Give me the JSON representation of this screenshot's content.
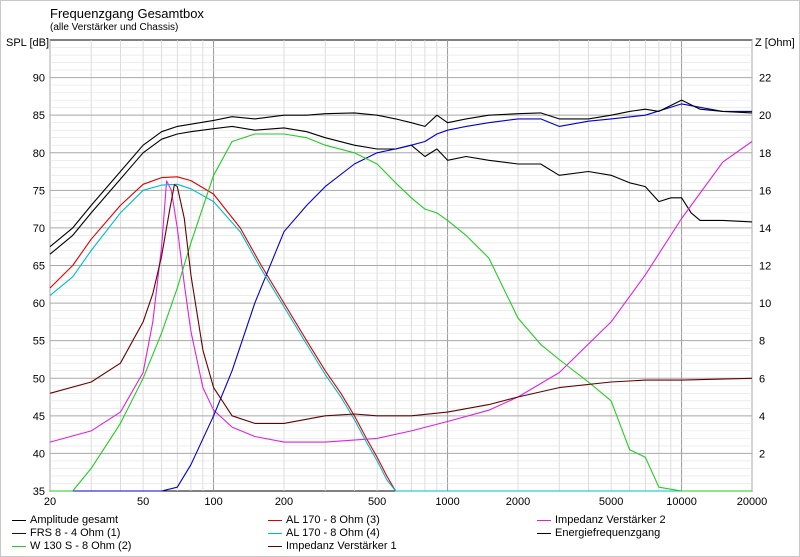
{
  "chart_data": {
    "type": "line",
    "title": "Frequenzgang Gesamtbox",
    "subtitle": "(alle Verstärker und Chassis)",
    "ylabel_left": "SPL [dB]",
    "ylabel_right": "Z [Ohm]",
    "x_scale": "log",
    "xlim": [
      20,
      20000
    ],
    "ylim": [
      35,
      95
    ],
    "ylim_right": [
      0,
      24
    ],
    "grid": true,
    "x_ticks": [
      20,
      50,
      100,
      200,
      500,
      1000,
      2000,
      5000,
      10000,
      20000
    ],
    "x_tick_labels": [
      "20",
      "50",
      "100",
      "200",
      "500",
      "1000",
      "2000",
      "5000",
      "10000",
      "20000"
    ],
    "y_ticks": [
      35,
      40,
      45,
      50,
      55,
      60,
      65,
      70,
      75,
      80,
      85,
      90
    ],
    "y_tick_labels": [
      "35",
      "40",
      "45",
      "50",
      "55",
      "60",
      "65",
      "70",
      "75",
      "80",
      "85",
      "90"
    ],
    "y_right_ticks": [
      2,
      4,
      6,
      8,
      10,
      12,
      14,
      16,
      18,
      20,
      22
    ],
    "y_right_tick_labels": [
      "2",
      "4",
      "6",
      "8",
      "10",
      "12",
      "14",
      "16",
      "18",
      "20",
      "22"
    ],
    "legend_placement": "bottom",
    "series": [
      {
        "name": "Amplitude gesamt",
        "color": "#000000",
        "axis": "left",
        "x": [
          20,
          25,
          30,
          40,
          50,
          60,
          70,
          80,
          100,
          120,
          150,
          200,
          250,
          300,
          400,
          500,
          600,
          700,
          800,
          900,
          1000,
          1200,
          1500,
          2000,
          2500,
          3000,
          4000,
          5000,
          6000,
          7000,
          8000,
          9000,
          10000,
          11000,
          12000,
          15000,
          20000
        ],
        "y": [
          66.5,
          69,
          72,
          76.5,
          80,
          81.8,
          82.5,
          82.8,
          83.2,
          83.5,
          83,
          83.3,
          82.8,
          82,
          81,
          80.5,
          80.5,
          81,
          79.5,
          80.5,
          79,
          79.5,
          79,
          78.5,
          78.5,
          77,
          77.5,
          77,
          76,
          75.5,
          73.5,
          74,
          74,
          72,
          71,
          71,
          70.8
        ]
      },
      {
        "name": "AL 170 - 8 Ohm (3)",
        "color": "#dd0000",
        "axis": "left",
        "x": [
          20,
          25,
          30,
          40,
          50,
          60,
          70,
          80,
          100,
          130,
          160,
          200,
          250,
          300,
          350,
          400,
          450,
          500,
          550,
          600,
          1000,
          2000,
          5000,
          10000,
          20000
        ],
        "y": [
          62,
          65,
          68.5,
          73,
          75.8,
          76.7,
          76.8,
          76.3,
          74.5,
          70,
          65,
          60,
          55,
          51,
          48,
          45,
          42,
          39.5,
          37,
          35,
          35,
          35,
          35,
          35,
          35
        ]
      },
      {
        "name": "Impedanz Verstärker 2",
        "color": "#dd22dd",
        "axis": "right",
        "x": [
          20,
          30,
          40,
          50,
          55,
          60,
          63,
          66,
          70,
          75,
          80,
          90,
          100,
          120,
          150,
          200,
          300,
          500,
          700,
          1000,
          1500,
          2000,
          3000,
          5000,
          7000,
          10000,
          15000,
          20000
        ],
        "y": [
          2.6,
          3.2,
          4.2,
          6.3,
          9,
          13,
          16.5,
          16,
          14,
          11,
          8.5,
          5.5,
          4.3,
          3.4,
          2.9,
          2.6,
          2.6,
          2.8,
          3.2,
          3.7,
          4.3,
          5,
          6.3,
          9,
          11.5,
          14.5,
          17.5,
          18.6
        ]
      },
      {
        "name": "FRS 8 - 4 Ohm (1)",
        "color": "#0000cc",
        "axis": "left",
        "x": [
          20,
          60,
          70,
          80,
          100,
          120,
          150,
          200,
          250,
          300,
          400,
          500,
          600,
          700,
          800,
          900,
          1000,
          1200,
          1500,
          2000,
          2500,
          3000,
          4000,
          5000,
          7000,
          10000,
          15000,
          20000
        ],
        "y": [
          35,
          35,
          35.5,
          38.5,
          45,
          51,
          60,
          69.5,
          73,
          75.5,
          78.5,
          80,
          80.5,
          81,
          81.5,
          82.5,
          83,
          83.5,
          84,
          84.5,
          84.5,
          83.5,
          84.2,
          84.5,
          85,
          86.5,
          85.5,
          85.5
        ]
      },
      {
        "name": "AL 170 - 8 Ohm (4)",
        "color": "#00bbcc",
        "axis": "left",
        "x": [
          20,
          25,
          30,
          40,
          50,
          60,
          70,
          80,
          100,
          130,
          160,
          200,
          250,
          300,
          350,
          400,
          450,
          500,
          550,
          600,
          1000,
          2000,
          5000,
          10000,
          20000
        ],
        "y": [
          61,
          63.5,
          67,
          72,
          75,
          75.7,
          75.8,
          75.2,
          73.5,
          69.5,
          64.5,
          59.5,
          54.5,
          50.5,
          47.5,
          44.5,
          41.5,
          39,
          36.5,
          35,
          35,
          35,
          35,
          35,
          35
        ]
      },
      {
        "name": "Energiefrequenzgang",
        "color": "#000000",
        "axis": "left",
        "x": [
          20,
          25,
          30,
          40,
          50,
          60,
          70,
          80,
          100,
          120,
          150,
          200,
          250,
          300,
          400,
          500,
          600,
          700,
          800,
          900,
          1000,
          1200,
          1500,
          2000,
          2500,
          3000,
          4000,
          5000,
          6000,
          7000,
          8000,
          10000,
          12000,
          15000,
          20000
        ],
        "y": [
          67.5,
          70,
          73,
          77.5,
          81,
          82.8,
          83.5,
          83.8,
          84.3,
          84.8,
          84.5,
          85,
          85,
          85.2,
          85.3,
          85,
          84.5,
          84,
          83.5,
          85,
          84,
          84.5,
          85,
          85.2,
          85.3,
          84.5,
          84.5,
          85,
          85.5,
          85.8,
          85.5,
          87,
          85.8,
          85.5,
          85.3
        ]
      },
      {
        "name": "W 130 S - 8 Ohm (2)",
        "color": "#22cc22",
        "axis": "left",
        "x": [
          20,
          25,
          30,
          40,
          50,
          60,
          70,
          80,
          100,
          120,
          150,
          200,
          250,
          300,
          400,
          500,
          600,
          700,
          800,
          900,
          1000,
          1200,
          1500,
          2000,
          2500,
          3000,
          4000,
          5000,
          6000,
          7000,
          8000,
          10000,
          20000
        ],
        "y": [
          35,
          35,
          38,
          44,
          50,
          56,
          62,
          68,
          77,
          81.5,
          82.5,
          82.5,
          82,
          81,
          80,
          78.5,
          76,
          74,
          72.5,
          72,
          71,
          69,
          66,
          58,
          54.5,
          52.5,
          49.5,
          47,
          40.5,
          39.5,
          35.5,
          35,
          35
        ]
      },
      {
        "name": "Impedanz Verstärker 1",
        "color": "#660000",
        "axis": "right",
        "x": [
          20,
          30,
          40,
          50,
          55,
          60,
          65,
          68,
          70,
          75,
          80,
          90,
          100,
          120,
          150,
          200,
          300,
          400,
          500,
          700,
          1000,
          1500,
          2000,
          3000,
          5000,
          7000,
          10000,
          20000
        ],
        "y": [
          5.2,
          5.8,
          6.8,
          9,
          10.5,
          12.5,
          15,
          16.3,
          16.2,
          14.5,
          11.5,
          7.5,
          5.5,
          4,
          3.6,
          3.6,
          4,
          4.1,
          4,
          4,
          4.2,
          4.6,
          5,
          5.5,
          5.8,
          5.9,
          5.9,
          6
        ]
      }
    ]
  }
}
